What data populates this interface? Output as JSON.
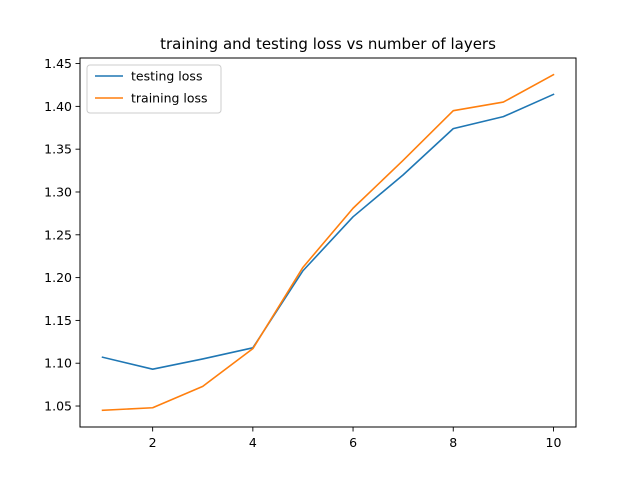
{
  "chart_data": {
    "type": "line",
    "title": "training and testing loss vs number of layers",
    "xlabel": "",
    "ylabel": "",
    "x": [
      1,
      2,
      3,
      4,
      5,
      6,
      7,
      8,
      9,
      10
    ],
    "xlim": [
      0.55,
      10.45
    ],
    "ylim": [
      1.0255,
      1.4565
    ],
    "xticks": [
      2,
      4,
      6,
      8,
      10
    ],
    "xtick_labels": [
      "2",
      "4",
      "6",
      "8",
      "10"
    ],
    "yticks": [
      1.05,
      1.1,
      1.15,
      1.2,
      1.25,
      1.3,
      1.35,
      1.4,
      1.45
    ],
    "ytick_labels": [
      "1.05",
      "1.10",
      "1.15",
      "1.20",
      "1.25",
      "1.30",
      "1.35",
      "1.40",
      "1.45"
    ],
    "grid": false,
    "legend_position": "top-left",
    "series": [
      {
        "name": "testing loss",
        "color": "#1f77b4",
        "values": [
          1.107,
          1.093,
          1.105,
          1.118,
          1.208,
          1.271,
          1.32,
          1.374,
          1.388,
          1.414
        ]
      },
      {
        "name": "training loss",
        "color": "#ff7f0e",
        "values": [
          1.045,
          1.048,
          1.073,
          1.117,
          1.212,
          1.281,
          1.337,
          1.395,
          1.405,
          1.437
        ]
      }
    ]
  }
}
